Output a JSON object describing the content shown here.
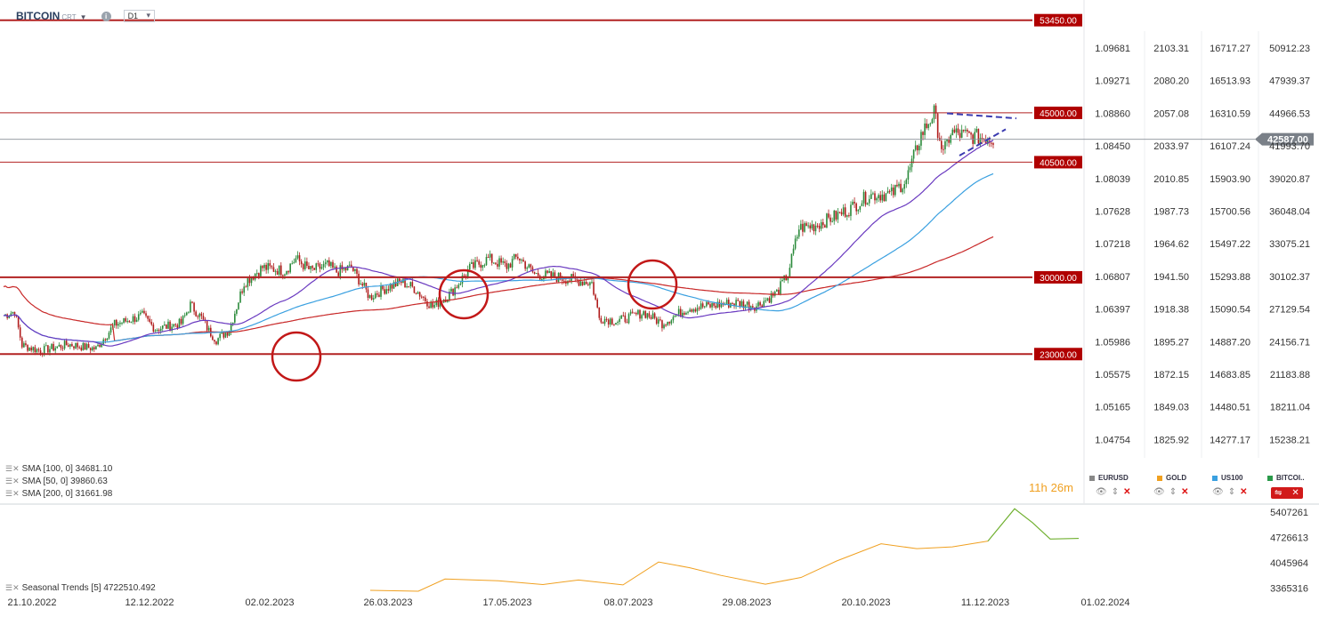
{
  "header": {
    "symbol": "BITCOIN",
    "symbol_suffix": "CRT",
    "timeframe": "D1"
  },
  "price_levels": [
    {
      "label": "53450.00",
      "value": 53450
    },
    {
      "label": "45000.00",
      "value": 45000
    },
    {
      "label": "40500.00",
      "value": 40500
    },
    {
      "label": "30000.00",
      "value": 30000
    },
    {
      "label": "23000.00",
      "value": 23000
    }
  ],
  "current_price": "42587.00",
  "axes": {
    "eurusd": [
      "1.09681",
      "1.09271",
      "1.08860",
      "1.08450",
      "1.08039",
      "1.07628",
      "1.07218",
      "1.06807",
      "1.06397",
      "1.05986",
      "1.05575",
      "1.05165",
      "1.04754"
    ],
    "gold": [
      "2103.31",
      "2080.20",
      "2057.08",
      "2033.97",
      "2010.85",
      "1987.73",
      "1964.62",
      "1941.50",
      "1918.38",
      "1895.27",
      "1872.15",
      "1849.03",
      "1825.92"
    ],
    "us100": [
      "16717.27",
      "16513.93",
      "16310.59",
      "16107.24",
      "15903.90",
      "15700.56",
      "15497.22",
      "15293.88",
      "15090.54",
      "14887.20",
      "14683.85",
      "14480.51",
      "14277.17"
    ],
    "bitcoin": [
      "50912.23",
      "47939.37",
      "44966.53",
      "41993.70",
      "39020.87",
      "36048.04",
      "33075.21",
      "30102.37",
      "27129.54",
      "24156.71",
      "21183.88",
      "18211.04",
      "15238.21"
    ]
  },
  "columns": [
    {
      "name": "EURUSD",
      "color": "#888888"
    },
    {
      "name": "GOLD",
      "color": "#f0a020"
    },
    {
      "name": "US100",
      "color": "#3aa0e0"
    },
    {
      "name": "BITCOI..",
      "color": "#2a9a4a"
    }
  ],
  "indicators": [
    {
      "label": "SMA [100, 0] 34681.10"
    },
    {
      "label": "SMA [50, 0] 39860.63"
    },
    {
      "label": "SMA [200, 0] 31661.98"
    }
  ],
  "timer": {
    "hours": "11h",
    "minutes": "26m"
  },
  "seasonal": {
    "label": "Seasonal Trends [5] 4722510.492",
    "axis": [
      "5407261",
      "4726613",
      "4045964",
      "3365316"
    ]
  },
  "dates": [
    "21.10.2022",
    "12.12.2022",
    "02.02.2023",
    "26.03.2023",
    "17.05.2023",
    "08.07.2023",
    "29.08.2023",
    "20.10.2023",
    "11.12.2023",
    "01.02.2024"
  ],
  "colors": {
    "level_line": "#b22222",
    "level_tag": "#b00000",
    "current_tag": "#7a8088",
    "sma100": "#3aa0e0",
    "sma50": "#6a3ac0",
    "sma200": "#c82828",
    "seasonal_orange": "#f0a020",
    "seasonal_green": "#70b030"
  }
}
